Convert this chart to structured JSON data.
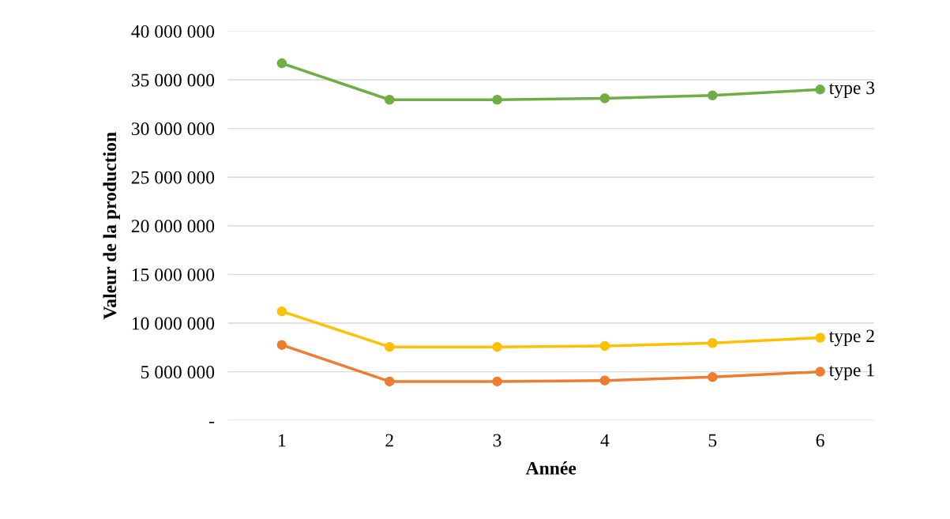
{
  "chart_data": {
    "type": "line",
    "xlabel": "Année",
    "ylabel": "Valeur de la production",
    "categories": [
      "1",
      "2",
      "3",
      "4",
      "5",
      "6"
    ],
    "series": [
      {
        "name": "type 3",
        "color": "#70ad47",
        "values": [
          36700000,
          32950000,
          32950000,
          33100000,
          33400000,
          34000000
        ]
      },
      {
        "name": "type 2",
        "color": "#ffc000",
        "values": [
          11200000,
          7550000,
          7550000,
          7650000,
          7950000,
          8500000
        ]
      },
      {
        "name": "type 1",
        "color": "#ed7d31",
        "values": [
          7750000,
          4000000,
          4000000,
          4100000,
          4450000,
          5000000
        ]
      }
    ],
    "ylim": [
      0,
      40000000
    ],
    "yticks": [
      {
        "value": 0,
        "label": "-"
      },
      {
        "value": 5000000,
        "label": "5 000 000"
      },
      {
        "value": 10000000,
        "label": "10 000 000"
      },
      {
        "value": 15000000,
        "label": "15 000 000"
      },
      {
        "value": 20000000,
        "label": "20 000 000"
      },
      {
        "value": 25000000,
        "label": "25 000 000"
      },
      {
        "value": 30000000,
        "label": "30 000 000"
      },
      {
        "value": 35000000,
        "label": "35 000 000"
      },
      {
        "value": 40000000,
        "label": "40 000 000"
      }
    ],
    "grid": "y",
    "legend": false,
    "marker": "circle",
    "line_style": "solid"
  }
}
